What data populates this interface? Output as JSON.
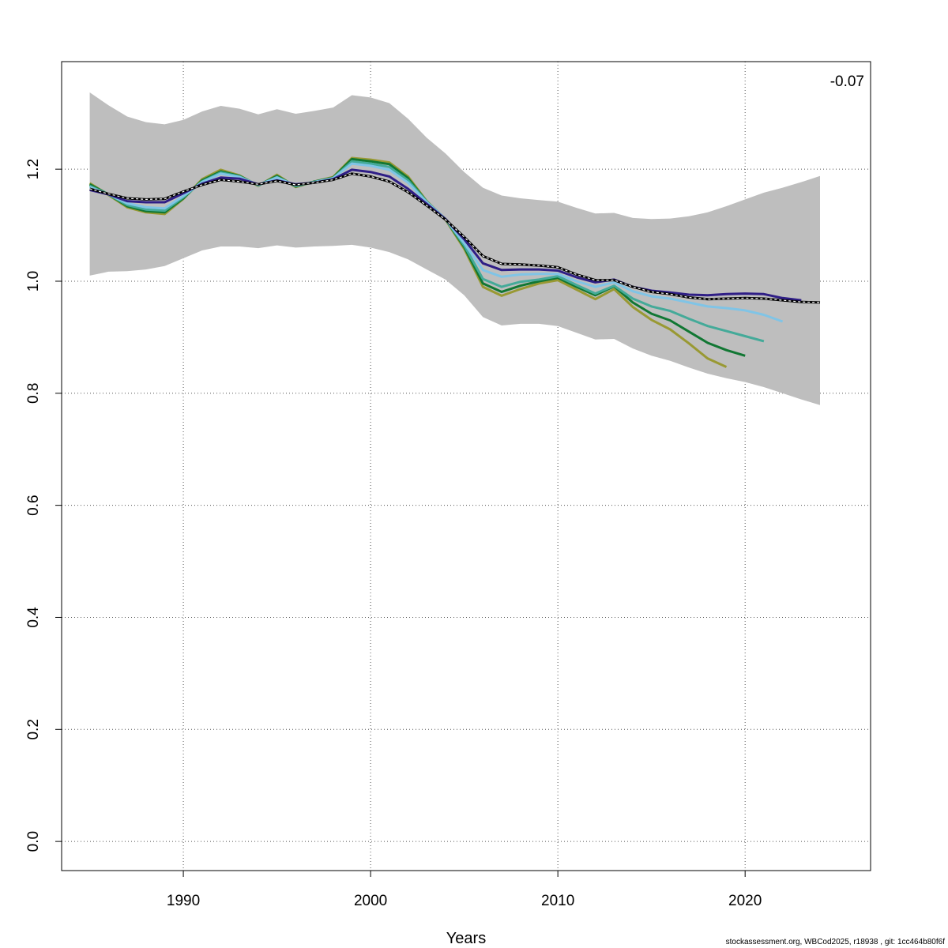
{
  "chart_data": {
    "type": "line",
    "xlabel": "Years",
    "ylabel": "",
    "xlim": [
      1983.5,
      2026.7
    ],
    "ylim": [
      -0.052,
      1.392
    ],
    "xticks": [
      1990,
      2000,
      2010,
      2020
    ],
    "yticks": [
      0.0,
      0.2,
      0.4,
      0.6,
      0.8,
      1.0,
      1.2
    ],
    "grid": true,
    "annotation": "-0.07",
    "footer": "stockassessment.org, WBCod2025, r18938 , git: 1cc464b80f6f",
    "band": {
      "x": [
        1985,
        1986,
        1987,
        1988,
        1989,
        1990,
        1991,
        1992,
        1993,
        1994,
        1995,
        1996,
        1997,
        1998,
        1999,
        2000,
        2001,
        2002,
        2003,
        2004,
        2005,
        2006,
        2007,
        2008,
        2009,
        2010,
        2011,
        2012,
        2013,
        2014,
        2015,
        2016,
        2017,
        2018,
        2019,
        2020,
        2021,
        2022,
        2023,
        2024
      ],
      "upper": [
        1.337,
        1.314,
        1.294,
        1.284,
        1.28,
        1.288,
        1.303,
        1.313,
        1.308,
        1.298,
        1.307,
        1.299,
        1.304,
        1.31,
        1.332,
        1.328,
        1.318,
        1.29,
        1.256,
        1.228,
        1.195,
        1.167,
        1.153,
        1.148,
        1.145,
        1.142,
        1.131,
        1.121,
        1.122,
        1.113,
        1.111,
        1.112,
        1.116,
        1.123,
        1.134,
        1.146,
        1.158,
        1.167,
        1.177,
        1.188
      ],
      "lower": [
        1.01,
        1.017,
        1.018,
        1.021,
        1.027,
        1.041,
        1.055,
        1.062,
        1.062,
        1.059,
        1.064,
        1.06,
        1.062,
        1.063,
        1.065,
        1.06,
        1.052,
        1.039,
        1.021,
        1.003,
        0.975,
        0.936,
        0.921,
        0.924,
        0.924,
        0.92,
        0.908,
        0.896,
        0.897,
        0.88,
        0.867,
        0.858,
        0.846,
        0.835,
        0.827,
        0.82,
        0.811,
        0.8,
        0.789,
        0.779
      ]
    },
    "series": [
      {
        "color": "#000000",
        "dashed": true,
        "width": 3,
        "x": [
          1985,
          1986,
          1987,
          1988,
          1989,
          1990,
          1991,
          1992,
          1993,
          1994,
          1995,
          1996,
          1997,
          1998,
          1999,
          2000,
          2001,
          2002,
          2003,
          2004,
          2005,
          2006,
          2007,
          2008,
          2009,
          2010,
          2011,
          2012,
          2013,
          2014,
          2015,
          2016,
          2017,
          2018,
          2019,
          2020,
          2021,
          2022,
          2023,
          2024
        ],
        "values": [
          1.165,
          1.156,
          1.148,
          1.146,
          1.147,
          1.16,
          1.172,
          1.181,
          1.178,
          1.173,
          1.179,
          1.172,
          1.176,
          1.181,
          1.192,
          1.187,
          1.178,
          1.159,
          1.135,
          1.11,
          1.079,
          1.045,
          1.031,
          1.03,
          1.028,
          1.025,
          1.012,
          1.002,
          1.002,
          0.99,
          0.981,
          0.977,
          0.971,
          0.968,
          0.969,
          0.97,
          0.969,
          0.966,
          0.963,
          0.962
        ]
      },
      {
        "color": "#2f1e86",
        "dashed": false,
        "width": 3,
        "x": [
          1985,
          1986,
          1987,
          1988,
          1989,
          1990,
          1991,
          1992,
          1993,
          1994,
          1995,
          1996,
          1997,
          1998,
          1999,
          2000,
          2001,
          2002,
          2003,
          2004,
          2005,
          2006,
          2007,
          2008,
          2009,
          2010,
          2011,
          2012,
          2013,
          2014,
          2015,
          2016,
          2017,
          2018,
          2019,
          2020,
          2021,
          2022,
          2023
        ],
        "values": [
          1.163,
          1.155,
          1.143,
          1.141,
          1.141,
          1.157,
          1.174,
          1.185,
          1.183,
          1.173,
          1.18,
          1.173,
          1.176,
          1.182,
          1.199,
          1.195,
          1.187,
          1.165,
          1.138,
          1.111,
          1.075,
          1.032,
          1.02,
          1.021,
          1.021,
          1.019,
          1.007,
          0.998,
          1.003,
          0.99,
          0.983,
          0.98,
          0.976,
          0.975,
          0.977,
          0.978,
          0.977,
          0.97,
          0.966
        ]
      },
      {
        "color": "#80c4e6",
        "dashed": false,
        "width": 3,
        "x": [
          1985,
          1986,
          1987,
          1988,
          1989,
          1990,
          1991,
          1992,
          1993,
          1994,
          1995,
          1996,
          1997,
          1998,
          1999,
          2000,
          2001,
          2002,
          2003,
          2004,
          2005,
          2006,
          2007,
          2008,
          2009,
          2010,
          2011,
          2012,
          2013,
          2014,
          2015,
          2016,
          2017,
          2018,
          2019,
          2020,
          2021,
          2022
        ],
        "values": [
          1.168,
          1.155,
          1.139,
          1.132,
          1.13,
          1.152,
          1.177,
          1.192,
          1.186,
          1.172,
          1.185,
          1.171,
          1.177,
          1.184,
          1.21,
          1.206,
          1.199,
          1.176,
          1.141,
          1.111,
          1.068,
          1.02,
          1.008,
          1.012,
          1.013,
          1.013,
          1.0,
          0.99,
          0.998,
          0.982,
          0.973,
          0.969,
          0.962,
          0.955,
          0.952,
          0.948,
          0.94,
          0.928
        ]
      },
      {
        "color": "#44aa99",
        "dashed": false,
        "width": 3,
        "x": [
          1985,
          1986,
          1987,
          1988,
          1989,
          1990,
          1991,
          1992,
          1993,
          1994,
          1995,
          1996,
          1997,
          1998,
          1999,
          2000,
          2001,
          2002,
          2003,
          2004,
          2005,
          2006,
          2007,
          2008,
          2009,
          2010,
          2011,
          2012,
          2013,
          2014,
          2015,
          2016,
          2017,
          2018,
          2019,
          2020,
          2021
        ],
        "values": [
          1.17,
          1.155,
          1.136,
          1.128,
          1.126,
          1.15,
          1.178,
          1.194,
          1.187,
          1.171,
          1.186,
          1.17,
          1.177,
          1.184,
          1.214,
          1.21,
          1.204,
          1.18,
          1.142,
          1.111,
          1.064,
          1.004,
          0.99,
          0.999,
          1.003,
          1.009,
          0.993,
          0.978,
          0.992,
          0.969,
          0.955,
          0.947,
          0.933,
          0.92,
          0.911,
          0.902,
          0.893
        ]
      },
      {
        "color": "#117733",
        "dashed": false,
        "width": 3,
        "x": [
          1985,
          1986,
          1987,
          1988,
          1989,
          1990,
          1991,
          1992,
          1993,
          1994,
          1995,
          1996,
          1997,
          1998,
          1999,
          2000,
          2001,
          2002,
          2003,
          2004,
          2005,
          2006,
          2007,
          2008,
          2009,
          2010,
          2011,
          2012,
          2013,
          2014,
          2015,
          2016,
          2017,
          2018,
          2019,
          2020
        ],
        "values": [
          1.173,
          1.155,
          1.134,
          1.125,
          1.123,
          1.148,
          1.18,
          1.196,
          1.188,
          1.171,
          1.188,
          1.169,
          1.178,
          1.185,
          1.218,
          1.214,
          1.209,
          1.184,
          1.142,
          1.111,
          1.061,
          0.996,
          0.981,
          0.992,
          1.0,
          1.006,
          0.99,
          0.975,
          0.991,
          0.962,
          0.942,
          0.93,
          0.91,
          0.89,
          0.877,
          0.867
        ]
      },
      {
        "color": "#999933",
        "dashed": false,
        "width": 3,
        "x": [
          1985,
          1986,
          1987,
          1988,
          1989,
          1990,
          1991,
          1992,
          1993,
          1994,
          1995,
          1996,
          1997,
          1998,
          1999,
          2000,
          2001,
          2002,
          2003,
          2004,
          2005,
          2006,
          2007,
          2008,
          2009,
          2010,
          2011,
          2012,
          2013,
          2014,
          2015,
          2016,
          2017,
          2018,
          2019
        ],
        "values": [
          1.175,
          1.154,
          1.132,
          1.123,
          1.12,
          1.147,
          1.182,
          1.199,
          1.189,
          1.17,
          1.19,
          1.168,
          1.178,
          1.186,
          1.22,
          1.217,
          1.212,
          1.187,
          1.143,
          1.11,
          1.058,
          0.99,
          0.974,
          0.986,
          0.996,
          1.002,
          0.985,
          0.968,
          0.986,
          0.954,
          0.931,
          0.914,
          0.889,
          0.862,
          0.847
        ]
      }
    ]
  }
}
